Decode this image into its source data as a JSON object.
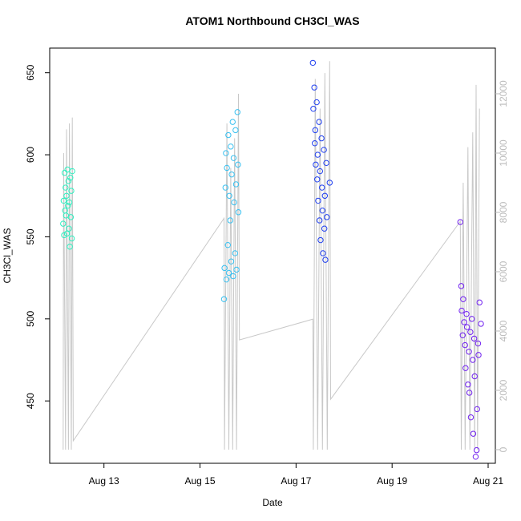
{
  "chart_data": {
    "type": "scatter",
    "title": "ATOM1 Northbound CH3Cl_WAS",
    "x_label": "Date",
    "y_label": "CH3Cl_WAS",
    "xlim": [
      11.87,
      21.15
    ],
    "xticks": [
      {
        "value": 13,
        "label": "Aug 13"
      },
      {
        "value": 15,
        "label": "Aug 15"
      },
      {
        "value": 17,
        "label": "Aug 17"
      },
      {
        "value": 19,
        "label": "Aug 19"
      },
      {
        "value": 21,
        "label": "Aug 21"
      }
    ],
    "ylim": [
      412,
      665
    ],
    "yticks": [
      450,
      500,
      550,
      600,
      650
    ],
    "y2lim": [
      -460,
      13540
    ],
    "y2ticks": [
      0,
      2000,
      4000,
      6000,
      8000,
      10000,
      12000
    ],
    "series": [
      {
        "color": "#2ef0c0",
        "x": [
          12.15,
          12.16,
          12.17,
          12.18,
          12.19,
          12.2,
          12.21,
          12.22,
          12.23,
          12.24,
          12.25,
          12.26,
          12.27,
          12.28,
          12.29,
          12.3,
          12.31,
          12.32,
          12.33,
          12.34
        ],
        "values": [
          558,
          572,
          551,
          589,
          566,
          580,
          563,
          575,
          552,
          591,
          569,
          584,
          555,
          571,
          544,
          586,
          562,
          578,
          549,
          590
        ]
      },
      {
        "color": "#38c0f0",
        "x": [
          15.5,
          15.51,
          15.53,
          15.54,
          15.55,
          15.56,
          15.58,
          15.59,
          15.6,
          15.61,
          15.63,
          15.64,
          15.65,
          15.66,
          15.68,
          15.69,
          15.7,
          15.71,
          15.73,
          15.74,
          15.75,
          15.76,
          15.78,
          15.79,
          15.8
        ],
        "values": [
          512,
          531,
          580,
          601,
          524,
          592,
          545,
          612,
          528,
          575,
          560,
          605,
          535,
          588,
          620,
          526,
          598,
          571,
          540,
          615,
          582,
          530,
          626,
          594,
          565
        ]
      },
      {
        "color": "#1f3ff0",
        "x": [
          17.35,
          17.36,
          17.38,
          17.39,
          17.4,
          17.41,
          17.43,
          17.44,
          17.45,
          17.46,
          17.48,
          17.49,
          17.5,
          17.51,
          17.53,
          17.54,
          17.55,
          17.56,
          17.58,
          17.59,
          17.6,
          17.61,
          17.63,
          17.64,
          17.7
        ],
        "values": [
          656,
          628,
          641,
          607,
          615,
          594,
          632,
          585,
          600,
          572,
          620,
          560,
          590,
          548,
          610,
          580,
          566,
          540,
          603,
          555,
          575,
          536,
          595,
          562,
          583
        ]
      },
      {
        "color": "#7020f0",
        "x": [
          20.42,
          20.44,
          20.45,
          20.47,
          20.48,
          20.5,
          20.52,
          20.53,
          20.55,
          20.56,
          20.58,
          20.6,
          20.61,
          20.63,
          20.64,
          20.66,
          20.68,
          20.69,
          20.71,
          20.72,
          20.74,
          20.76,
          20.77,
          20.79,
          20.8,
          20.82,
          20.85
        ],
        "values": [
          559,
          520,
          505,
          490,
          512,
          498,
          484,
          470,
          503,
          495,
          460,
          480,
          455,
          492,
          440,
          500,
          475,
          430,
          488,
          465,
          416,
          420,
          445,
          485,
          478,
          510,
          497
        ]
      },
      {
        "type": "line",
        "axis": "y2",
        "color": "#c8c8c8",
        "x": [
          12.15,
          12.16,
          12.2,
          12.22,
          12.26,
          12.28,
          12.32,
          12.34,
          12.36,
          15.5,
          15.51,
          15.56,
          15.6,
          15.64,
          15.68,
          15.72,
          15.76,
          15.8,
          15.82,
          17.35,
          17.36,
          17.4,
          17.45,
          17.5,
          17.55,
          17.6,
          17.65,
          17.7,
          17.72,
          20.42,
          20.44,
          20.48,
          20.52,
          20.58,
          20.62,
          20.68,
          20.72,
          20.75,
          20.78,
          20.82
        ],
        "values": [
          0,
          10000,
          0,
          10800,
          0,
          11000,
          0,
          11200,
          300,
          7800,
          0,
          11000,
          0,
          9500,
          0,
          10500,
          0,
          12000,
          3700,
          4400,
          0,
          12500,
          0,
          11500,
          0,
          12700,
          0,
          13100,
          1700,
          7700,
          0,
          9000,
          0,
          10200,
          0,
          10700,
          0,
          12300,
          0,
          11500
        ]
      }
    ]
  }
}
